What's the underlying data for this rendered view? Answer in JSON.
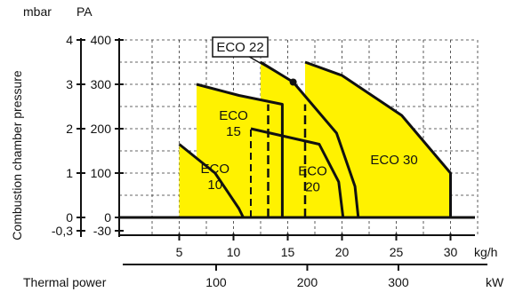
{
  "chart_data": {
    "type": "area",
    "title": "",
    "ylabel": "Combustion chamber pressure",
    "y_units": {
      "left": "mbar",
      "right": "PA"
    },
    "y_ticks": [
      {
        "pa": 400,
        "mbar": "4",
        "pa_label": "400"
      },
      {
        "pa": 300,
        "mbar": "3",
        "pa_label": "300"
      },
      {
        "pa": 200,
        "mbar": "2",
        "pa_label": "200"
      },
      {
        "pa": 100,
        "mbar": "1",
        "pa_label": "100"
      },
      {
        "pa": 0,
        "mbar": "0",
        "pa_label": "0"
      },
      {
        "pa": -30,
        "mbar": "-0,3",
        "pa_label": "-30"
      }
    ],
    "ylim": [
      -30,
      400
    ],
    "xlabel": "kg/h",
    "x_ticks": [
      5,
      10,
      15,
      20,
      25,
      30
    ],
    "xlim": [
      0,
      35
    ],
    "secondary_x": {
      "label": "Thermal power",
      "unit": "kW",
      "ticks": [
        {
          "value": 100,
          "kg_h": 8.4
        },
        {
          "value": 200,
          "kg_h": 16.8
        },
        {
          "value": 300,
          "kg_h": 25.2
        }
      ]
    },
    "grid": true,
    "zero_line": true,
    "series": [
      {
        "name": "ECO 10",
        "label_lines": [
          "ECO",
          "10"
        ],
        "label_pos": [
          8.3,
          100
        ],
        "points": [
          [
            5,
            0
          ],
          [
            5,
            165
          ],
          [
            8.3,
            100
          ],
          [
            10.5,
            20
          ],
          [
            10.9,
            0
          ]
        ],
        "boundary": [
          [
            5,
            165
          ],
          [
            8.3,
            100
          ],
          [
            10.5,
            20
          ],
          [
            10.9,
            0
          ]
        ]
      },
      {
        "name": "ECO 15",
        "label_lines": [
          "ECO",
          "15"
        ],
        "label_pos": [
          10,
          220
        ],
        "points": [
          [
            6.6,
            0
          ],
          [
            6.6,
            300
          ],
          [
            10.5,
            275
          ],
          [
            14.5,
            255
          ],
          [
            14.5,
            0
          ]
        ],
        "boundary": [
          [
            6.6,
            300
          ],
          [
            10.5,
            275
          ],
          [
            14.5,
            255
          ],
          [
            14.5,
            0
          ]
        ]
      },
      {
        "name": "ECO 20",
        "label_lines": [
          "ECO",
          "20"
        ],
        "label_pos": [
          17.3,
          95
        ],
        "points": [
          [
            11.6,
            0
          ],
          [
            11.6,
            200
          ],
          [
            17.9,
            165
          ],
          [
            19.7,
            80
          ],
          [
            20.1,
            0
          ]
        ],
        "boundary": [
          [
            11.6,
            200
          ],
          [
            17.9,
            165
          ],
          [
            19.7,
            80
          ],
          [
            20.1,
            0
          ]
        ],
        "dashed_from": [
          [
            11.6,
            0
          ],
          [
            11.6,
            200
          ],
          [
            17.9,
            165
          ]
        ]
      },
      {
        "name": "ECO 22",
        "callout": "ECO 22",
        "callout_point": [
          15.5,
          305
        ],
        "points": [
          [
            12.5,
            0
          ],
          [
            12.5,
            350
          ],
          [
            15.5,
            305
          ],
          [
            19.5,
            190
          ],
          [
            21.2,
            70
          ],
          [
            21.5,
            0
          ]
        ],
        "boundary": [
          [
            12.5,
            350
          ],
          [
            15.5,
            305
          ],
          [
            19.5,
            190
          ],
          [
            21.2,
            70
          ],
          [
            21.5,
            0
          ]
        ],
        "dashed_edges": [
          [
            [
              13.2,
              0
            ],
            [
              13.2,
              255
            ]
          ],
          [
            [
              16.6,
              0
            ],
            [
              16.6,
              255
            ]
          ]
        ]
      },
      {
        "name": "ECO 30",
        "label_lines": [
          "ECO 30"
        ],
        "label_pos": [
          24.8,
          120
        ],
        "points": [
          [
            16.6,
            0
          ],
          [
            16.6,
            350
          ],
          [
            20,
            320
          ],
          [
            25.5,
            230
          ],
          [
            30,
            100
          ],
          [
            30,
            0
          ]
        ],
        "boundary": [
          [
            16.6,
            350
          ],
          [
            20,
            320
          ],
          [
            25.5,
            230
          ],
          [
            30,
            100
          ],
          [
            30,
            0
          ]
        ]
      }
    ]
  }
}
